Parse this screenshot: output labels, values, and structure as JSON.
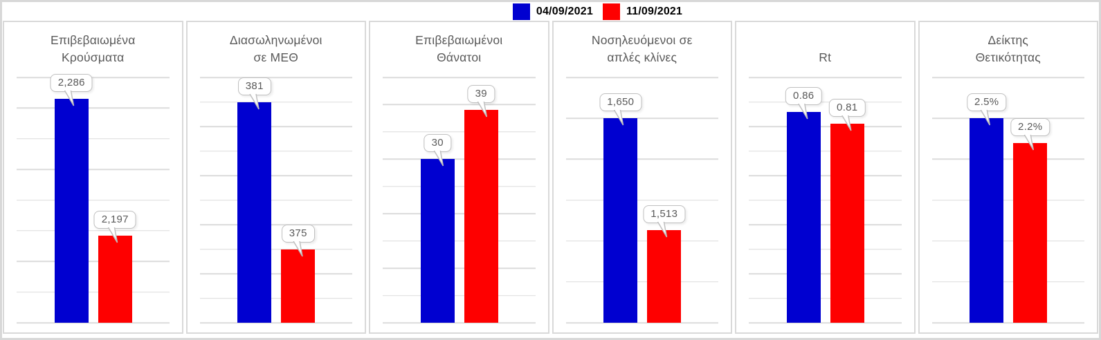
{
  "legend": {
    "items": [
      {
        "label": "04/09/2021",
        "color": "#0000D0"
      },
      {
        "label": "11/09/2021",
        "color": "#FE0000"
      }
    ]
  },
  "chart_data": [
    {
      "type": "bar",
      "title": "Επιβεβαιωμένα Κρούσματα",
      "title_lines": [
        "Επιβεβαιωμένα",
        "Κρούσματα"
      ],
      "categories": [
        "04/09/2021",
        "11/09/2021"
      ],
      "series": [
        {
          "name": "04/09/2021",
          "value": 2286,
          "label": "2,286",
          "color": "#0000D0"
        },
        {
          "name": "11/09/2021",
          "value": 2197,
          "label": "2,197",
          "color": "#FE0000"
        }
      ],
      "ylim": [
        2140,
        2300
      ],
      "gridline_step": 20,
      "grid": true,
      "legend_position": "top"
    },
    {
      "type": "bar",
      "title": "Διασωληνωμένοι σε ΜΕΘ",
      "title_lines": [
        "Διασωληνωμένοι",
        "σε ΜΕΘ"
      ],
      "categories": [
        "04/09/2021",
        "11/09/2021"
      ],
      "series": [
        {
          "name": "04/09/2021",
          "value": 381,
          "label": "381",
          "color": "#0000D0"
        },
        {
          "name": "11/09/2021",
          "value": 375,
          "label": "375",
          "color": "#FE0000"
        }
      ],
      "ylim": [
        372,
        382
      ],
      "gridline_step": 1,
      "grid": true,
      "legend_position": "top"
    },
    {
      "type": "bar",
      "title": "Επιβεβαιωμένοι Θάνατοι",
      "title_lines": [
        "Επιβεβαιωμένοι",
        "Θάνατοι"
      ],
      "categories": [
        "04/09/2021",
        "11/09/2021"
      ],
      "series": [
        {
          "name": "04/09/2021",
          "value": 30,
          "label": "30",
          "color": "#0000D0"
        },
        {
          "name": "11/09/2021",
          "value": 39,
          "label": "39",
          "color": "#FE0000"
        }
      ],
      "ylim": [
        0,
        45
      ],
      "gridline_step": 5,
      "grid": true,
      "legend_position": "top"
    },
    {
      "type": "bar",
      "title": "Νοσηλευόμενοι σε απλές κλίνες",
      "title_lines": [
        "Νοσηλευόμενοι σε",
        "απλές κλίνες"
      ],
      "categories": [
        "04/09/2021",
        "11/09/2021"
      ],
      "series": [
        {
          "name": "04/09/2021",
          "value": 1650,
          "label": "1,650",
          "color": "#0000D0"
        },
        {
          "name": "11/09/2021",
          "value": 1513,
          "label": "1,513",
          "color": "#FE0000"
        }
      ],
      "ylim": [
        1400,
        1700
      ],
      "gridline_step": 50,
      "grid": true,
      "legend_position": "top"
    },
    {
      "type": "bar",
      "title": "Rt",
      "title_lines": [
        "Rt"
      ],
      "categories": [
        "04/09/2021",
        "11/09/2021"
      ],
      "series": [
        {
          "name": "04/09/2021",
          "value": 0.86,
          "label": "0.86",
          "color": "#0000D0"
        },
        {
          "name": "11/09/2021",
          "value": 0.81,
          "label": "0.81",
          "color": "#FE0000"
        }
      ],
      "ylim": [
        0,
        1
      ],
      "gridline_step": 0.1,
      "grid": true,
      "legend_position": "top"
    },
    {
      "type": "bar",
      "title": "Δείκτης Θετικότητας",
      "title_lines": [
        "Δείκτης",
        "Θετικότητας"
      ],
      "categories": [
        "04/09/2021",
        "11/09/2021"
      ],
      "series": [
        {
          "name": "04/09/2021",
          "value": 2.5,
          "label": "2.5%",
          "color": "#0000D0"
        },
        {
          "name": "11/09/2021",
          "value": 2.2,
          "label": "2.2%",
          "color": "#FE0000"
        }
      ],
      "ylim": [
        0,
        3
      ],
      "gridline_step": 0.5,
      "grid": true,
      "legend_position": "top"
    }
  ]
}
